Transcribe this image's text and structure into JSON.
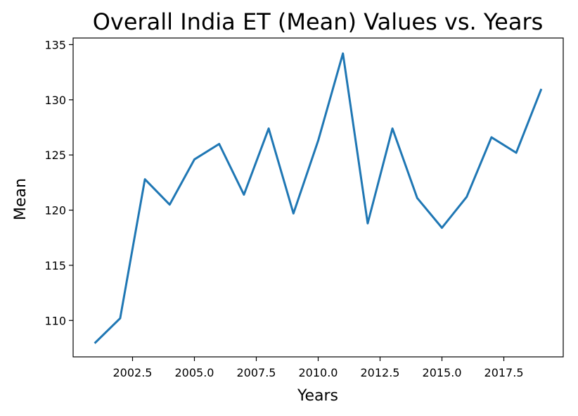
{
  "chart_data": {
    "type": "line",
    "title": "Overall India ET (Mean) Values vs. Years",
    "xlabel": "Years",
    "ylabel": "Mean",
    "xlim": [
      2000.1,
      2019.9
    ],
    "ylim": [
      106.7,
      135.6
    ],
    "xticks": [
      2002.5,
      2005.0,
      2007.5,
      2010.0,
      2012.5,
      2015.0,
      2017.5
    ],
    "xtick_labels": [
      "2002.5",
      "2005.0",
      "2007.5",
      "2010.0",
      "2012.5",
      "2015.0",
      "2017.5"
    ],
    "yticks": [
      110,
      115,
      120,
      125,
      130,
      135
    ],
    "ytick_labels": [
      "110",
      "115",
      "120",
      "125",
      "130",
      "135"
    ],
    "grid": false,
    "series": [
      {
        "color": "#1f77b4",
        "x": [
          2001,
          2002,
          2003,
          2004,
          2005,
          2006,
          2007,
          2008,
          2009,
          2010,
          2011,
          2012,
          2013,
          2014,
          2015,
          2016,
          2017,
          2018,
          2019
        ],
        "values": [
          108.0,
          110.2,
          122.8,
          120.5,
          124.6,
          126.0,
          121.4,
          127.4,
          119.7,
          126.3,
          134.2,
          118.8,
          127.4,
          121.1,
          118.4,
          121.2,
          126.6,
          125.2,
          130.9
        ]
      }
    ]
  }
}
